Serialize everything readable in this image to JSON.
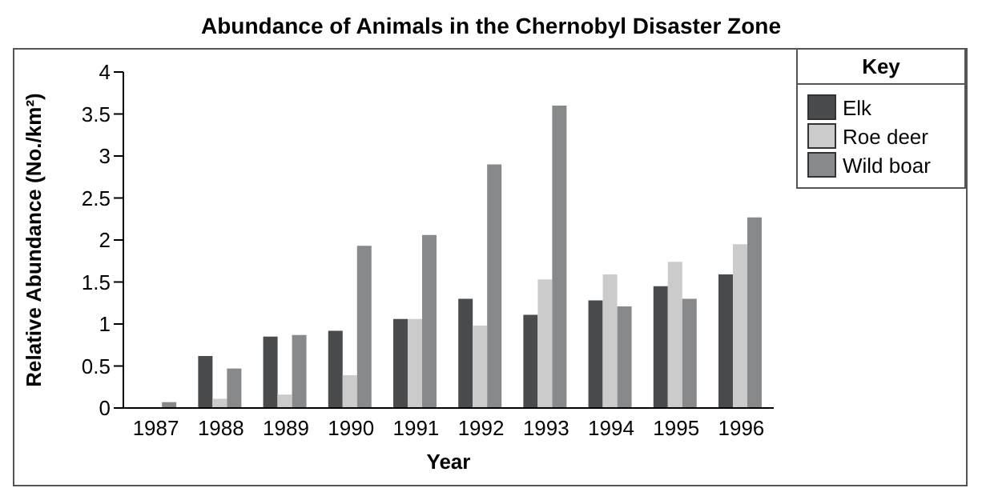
{
  "chart_data": {
    "type": "bar",
    "title": "Abundance of Animals in the Chernobyl Disaster Zone",
    "xlabel": "Year",
    "ylabel": "Relative Abundance (No./km²)",
    "legend_title": "Key",
    "categories": [
      "1987",
      "1988",
      "1989",
      "1990",
      "1991",
      "1992",
      "1993",
      "1994",
      "1995",
      "1996"
    ],
    "series": [
      {
        "name": "Elk",
        "color": "#4a4b4d",
        "values": [
          0,
          0.62,
          0.85,
          0.92,
          1.06,
          1.3,
          1.11,
          1.28,
          1.45,
          1.59
        ]
      },
      {
        "name": "Roe deer",
        "color": "#cbcbcc",
        "values": [
          0,
          0.11,
          0.16,
          0.39,
          1.06,
          0.98,
          1.53,
          1.59,
          1.74,
          1.95
        ]
      },
      {
        "name": "Wild boar",
        "color": "#88898b",
        "values": [
          0.07,
          0.47,
          0.87,
          1.93,
          2.06,
          2.9,
          3.6,
          1.21,
          1.3,
          2.27
        ]
      }
    ],
    "ylim": [
      0,
      4
    ],
    "yticks": [
      0,
      0.5,
      1,
      1.5,
      2,
      2.5,
      3,
      3.5,
      4
    ],
    "grid": false,
    "legend": "top right"
  }
}
